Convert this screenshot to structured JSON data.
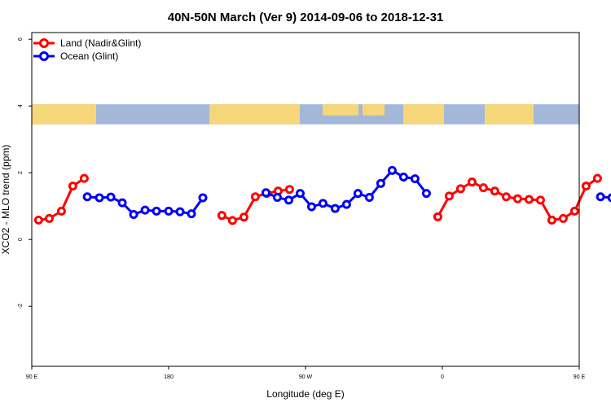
{
  "chart_data": {
    "type": "line",
    "title": "40N-50N March (Ver 9)   2014-09-06 to 2018-12-31",
    "xlabel": "Longitude (deg E)",
    "ylabel": "XCO2 - MLO trend (ppm)",
    "xlim": [
      90,
      450
    ],
    "ylim": [
      -3.8,
      6.2
    ],
    "x_ticks": [
      {
        "value": 90,
        "label": "90 E"
      },
      {
        "value": 180,
        "label": "180"
      },
      {
        "value": 270,
        "label": "90 W"
      },
      {
        "value": 360,
        "label": "0"
      },
      {
        "value": 450,
        "label": "90 E"
      },
      {
        "value": 540,
        "label": "180"
      }
    ],
    "y_ticks": [
      {
        "value": -2,
        "label": "-2"
      },
      {
        "value": 0,
        "label": "0"
      },
      {
        "value": 2,
        "label": "2"
      },
      {
        "value": 4,
        "label": "4"
      },
      {
        "value": 6,
        "label": "6"
      }
    ],
    "legend_position": "top-left",
    "map_strip": {
      "y_range": [
        3.45,
        4.05
      ],
      "land_color": "#f5d77a",
      "ocean_color": "#a3b8d8"
    },
    "series": [
      {
        "name": "Land (Nadir&Glint)",
        "color": "#ff0000",
        "segments": [
          [
            [
              94.5,
              0.58
            ],
            [
              101.5,
              0.63
            ],
            [
              109.5,
              0.85
            ],
            [
              117,
              1.6
            ],
            [
              124.5,
              1.83
            ]
          ],
          [
            [
              215,
              0.72
            ],
            [
              222,
              0.57
            ],
            [
              229.5,
              0.67
            ],
            [
              237,
              1.28
            ],
            [
              244.5,
              1.38
            ],
            [
              252,
              1.45
            ],
            [
              259.5,
              1.5
            ]
          ],
          [
            [
              357,
              0.68
            ],
            [
              364.5,
              1.3
            ],
            [
              372,
              1.52
            ],
            [
              379.5,
              1.72
            ],
            [
              387,
              1.55
            ],
            [
              394.5,
              1.45
            ],
            [
              402,
              1.28
            ],
            [
              409.5,
              1.22
            ],
            [
              417,
              1.2
            ],
            [
              424.5,
              1.18
            ],
            [
              432,
              0.58
            ],
            [
              439.5,
              0.63
            ],
            [
              447,
              0.85
            ],
            [
              454.5,
              1.6
            ],
            [
              462,
              1.83
            ]
          ]
        ]
      },
      {
        "name": "Ocean (Glint)",
        "color": "#0000ff",
        "segments": [
          [
            [
              126.5,
              1.28
            ],
            [
              134.5,
              1.25
            ],
            [
              142,
              1.27
            ],
            [
              149.5,
              1.1
            ],
            [
              157,
              0.75
            ],
            [
              164.5,
              0.88
            ],
            [
              172,
              0.85
            ],
            [
              180,
              0.85
            ],
            [
              187.5,
              0.83
            ],
            [
              195,
              0.77
            ],
            [
              202.5,
              1.25
            ]
          ],
          [
            [
              244,
              1.4
            ],
            [
              251.5,
              1.26
            ],
            [
              259,
              1.18
            ],
            [
              266.5,
              1.38
            ],
            [
              274,
              0.98
            ],
            [
              281.5,
              1.08
            ],
            [
              289.5,
              0.93
            ],
            [
              297,
              1.05
            ],
            [
              304.5,
              1.38
            ],
            [
              312,
              1.26
            ],
            [
              319.5,
              1.68
            ],
            [
              327,
              2.07
            ],
            [
              334.5,
              1.87
            ],
            [
              342,
              1.82
            ],
            [
              349.5,
              1.38
            ]
          ],
          [
            [
              464,
              1.28
            ],
            [
              471.5,
              1.25
            ],
            [
              479,
              1.27
            ],
            [
              486.5,
              1.1
            ],
            [
              494,
              0.75
            ]
          ]
        ]
      }
    ]
  }
}
